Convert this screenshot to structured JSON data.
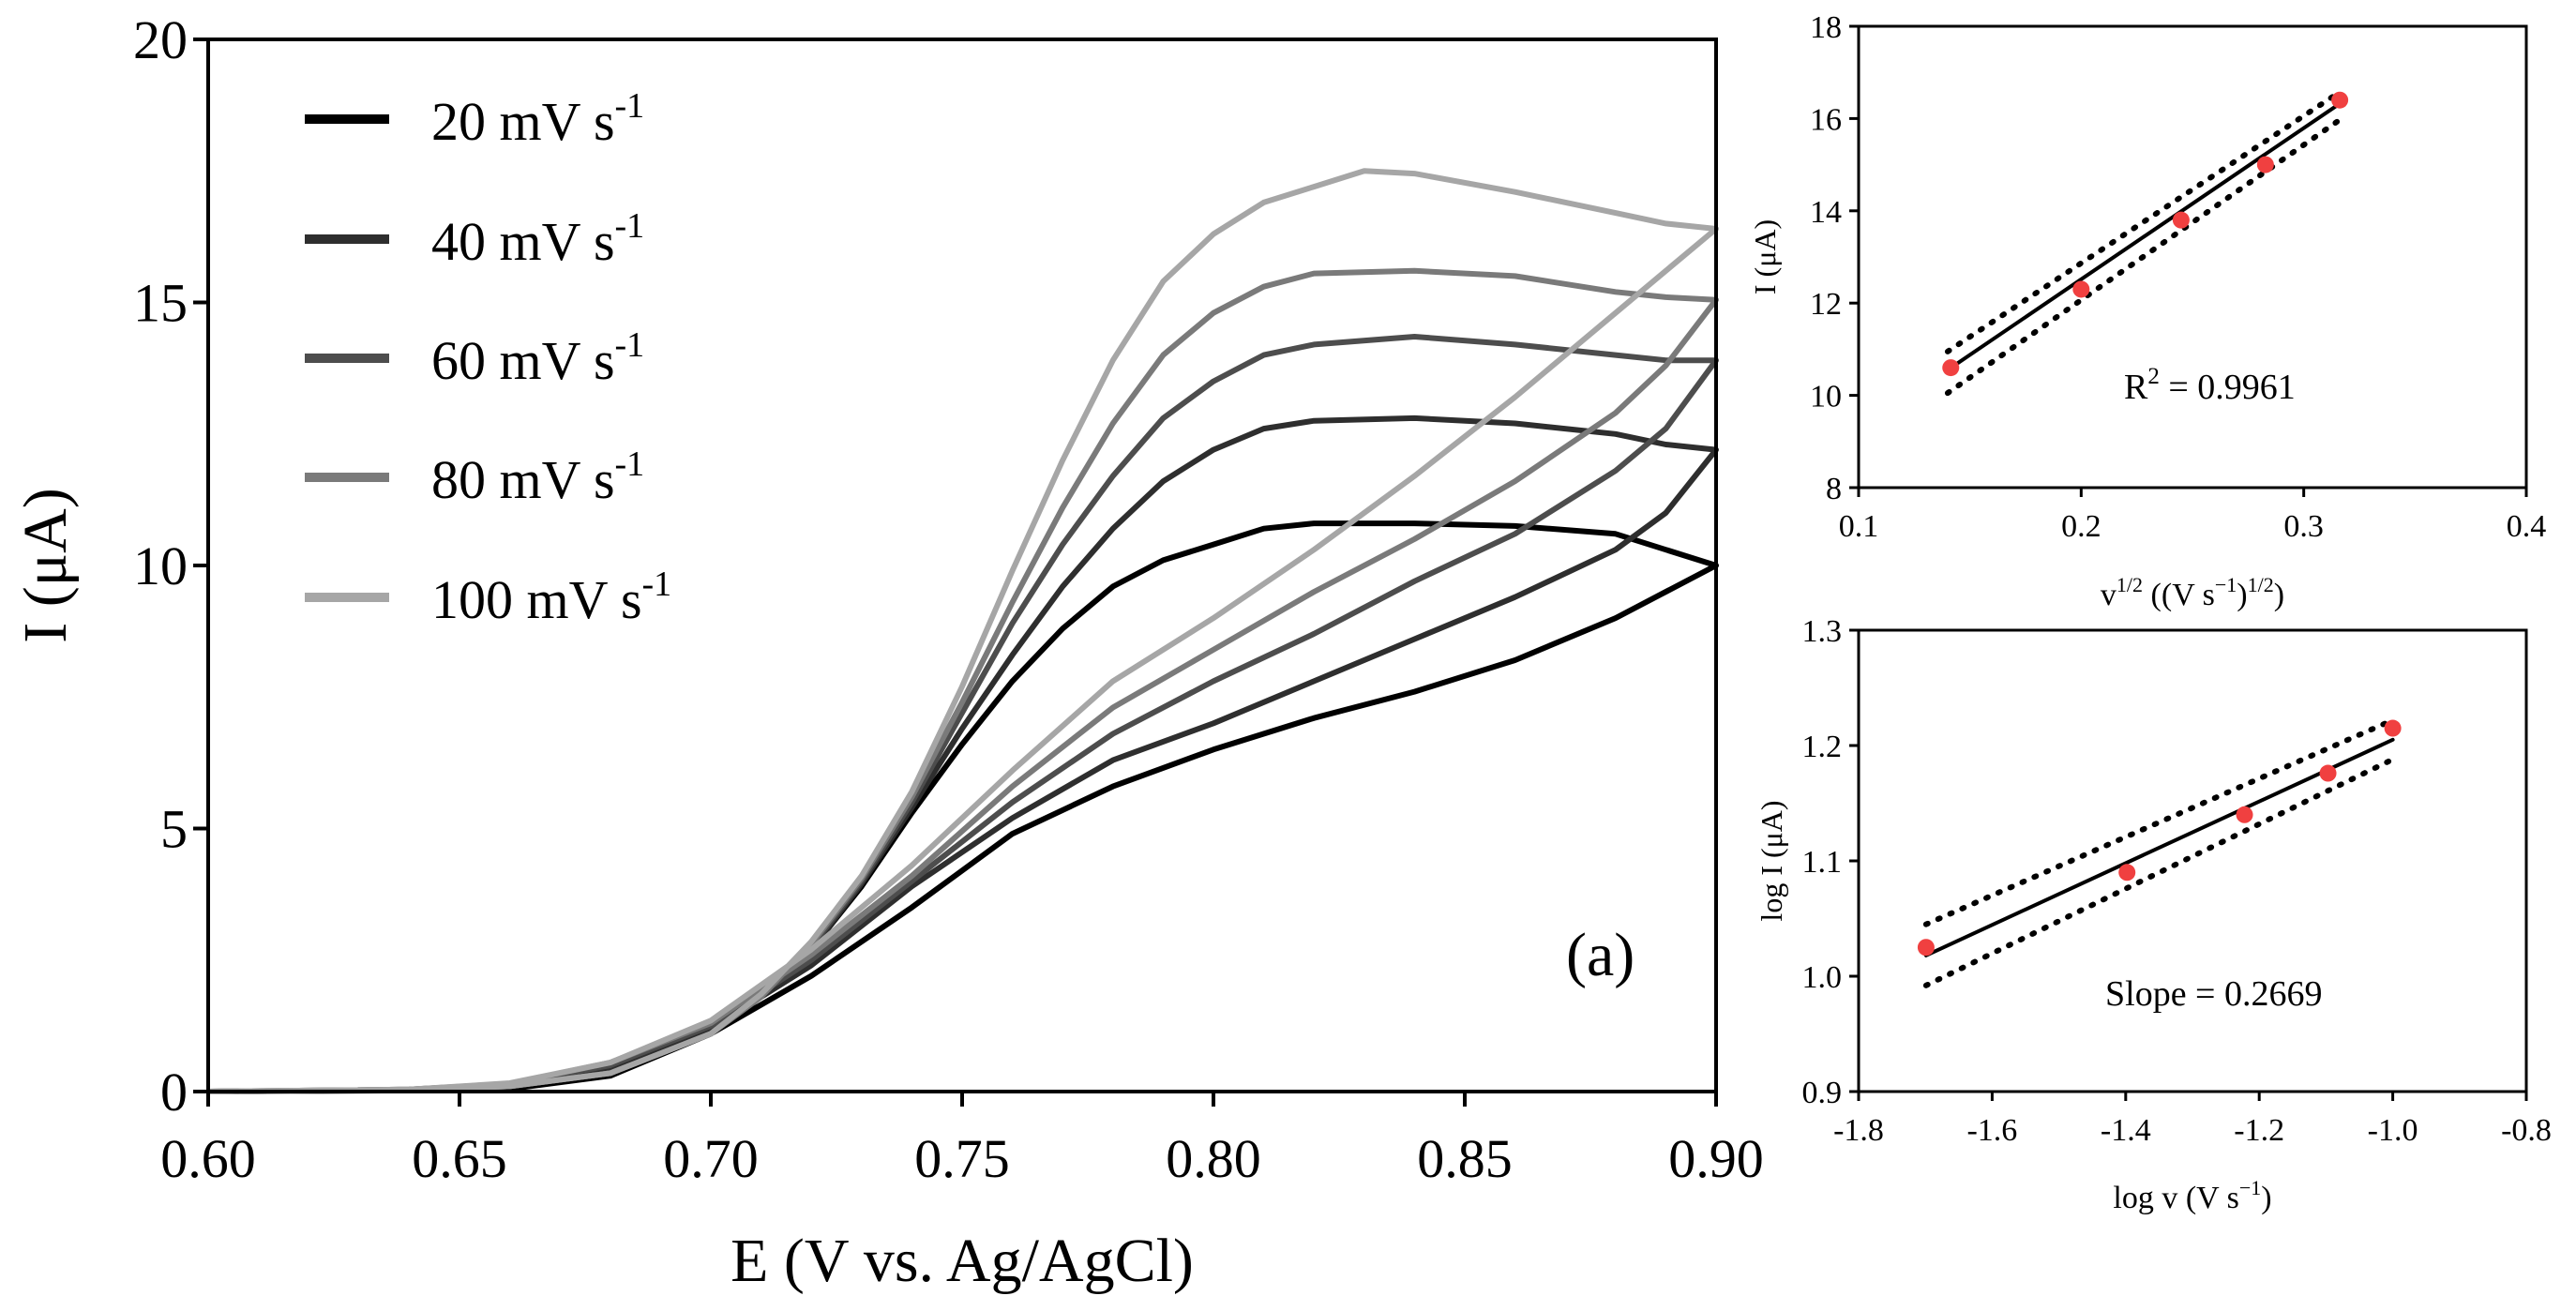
{
  "chart_data": [
    {
      "id": "main",
      "type": "line",
      "title": "",
      "panel_label": "(a)",
      "xlabel": "E (V vs. Ag/AgCl)",
      "ylabel": "I (μA)",
      "xlim": [
        0.6,
        0.9
      ],
      "ylim": [
        0,
        20
      ],
      "xticks": [
        "0.60",
        "0.65",
        "0.70",
        "0.75",
        "0.80",
        "0.85",
        "0.90"
      ],
      "yticks": [
        "0",
        "5",
        "10",
        "15",
        "20"
      ],
      "legend_position": "top-left",
      "series": [
        {
          "name": "20 mV s⁻¹",
          "legend_text": "20 mV s",
          "legend_sup": "-1",
          "color": "#000000",
          "forward": [
            [
              0.6,
              0
            ],
            [
              0.64,
              0.03
            ],
            [
              0.66,
              0.1
            ],
            [
              0.68,
              0.35
            ],
            [
              0.7,
              1.1
            ],
            [
              0.71,
              1.8
            ],
            [
              0.72,
              2.7
            ],
            [
              0.73,
              3.9
            ],
            [
              0.74,
              5.3
            ],
            [
              0.75,
              6.6
            ],
            [
              0.76,
              7.8
            ],
            [
              0.77,
              8.8
            ],
            [
              0.78,
              9.6
            ],
            [
              0.79,
              10.1
            ],
            [
              0.8,
              10.4
            ],
            [
              0.81,
              10.7
            ],
            [
              0.82,
              10.8
            ],
            [
              0.84,
              10.8
            ],
            [
              0.86,
              10.75
            ],
            [
              0.88,
              10.6
            ],
            [
              0.89,
              10.3
            ],
            [
              0.9,
              10.0
            ]
          ],
          "reverse": [
            [
              0.9,
              10.0
            ],
            [
              0.88,
              9.0
            ],
            [
              0.86,
              8.2
            ],
            [
              0.84,
              7.6
            ],
            [
              0.82,
              7.1
            ],
            [
              0.8,
              6.5
            ],
            [
              0.78,
              5.8
            ],
            [
              0.76,
              4.9
            ],
            [
              0.74,
              3.5
            ],
            [
              0.72,
              2.2
            ],
            [
              0.7,
              1.1
            ],
            [
              0.68,
              0.3
            ],
            [
              0.66,
              0.05
            ],
            [
              0.64,
              0.02
            ],
            [
              0.62,
              0.01
            ],
            [
              0.6,
              0
            ]
          ]
        },
        {
          "name": "40 mV s⁻¹",
          "legend_text": "40 mV s",
          "legend_sup": "-1",
          "color": "#2e2e2e",
          "forward": [
            [
              0.6,
              0
            ],
            [
              0.64,
              0.03
            ],
            [
              0.66,
              0.1
            ],
            [
              0.68,
              0.35
            ],
            [
              0.7,
              1.1
            ],
            [
              0.71,
              1.8
            ],
            [
              0.72,
              2.7
            ],
            [
              0.73,
              3.95
            ],
            [
              0.74,
              5.4
            ],
            [
              0.75,
              6.9
            ],
            [
              0.76,
              8.3
            ],
            [
              0.77,
              9.6
            ],
            [
              0.78,
              10.7
            ],
            [
              0.79,
              11.6
            ],
            [
              0.8,
              12.2
            ],
            [
              0.81,
              12.6
            ],
            [
              0.82,
              12.75
            ],
            [
              0.84,
              12.8
            ],
            [
              0.86,
              12.7
            ],
            [
              0.88,
              12.5
            ],
            [
              0.89,
              12.3
            ],
            [
              0.9,
              12.2
            ]
          ],
          "reverse": [
            [
              0.9,
              12.2
            ],
            [
              0.89,
              11.0
            ],
            [
              0.88,
              10.3
            ],
            [
              0.86,
              9.4
            ],
            [
              0.84,
              8.6
            ],
            [
              0.82,
              7.8
            ],
            [
              0.8,
              7.0
            ],
            [
              0.78,
              6.3
            ],
            [
              0.76,
              5.2
            ],
            [
              0.74,
              3.9
            ],
            [
              0.72,
              2.4
            ],
            [
              0.7,
              1.2
            ],
            [
              0.68,
              0.45
            ],
            [
              0.66,
              0.12
            ],
            [
              0.64,
              0.03
            ],
            [
              0.6,
              0
            ]
          ]
        },
        {
          "name": "60 mV s⁻¹",
          "legend_text": "60 mV s",
          "legend_sup": "-1",
          "color": "#4d4d4d",
          "forward": [
            [
              0.6,
              0
            ],
            [
              0.64,
              0.03
            ],
            [
              0.66,
              0.1
            ],
            [
              0.68,
              0.35
            ],
            [
              0.7,
              1.1
            ],
            [
              0.71,
              1.8
            ],
            [
              0.72,
              2.75
            ],
            [
              0.73,
              4.0
            ],
            [
              0.74,
              5.5
            ],
            [
              0.75,
              7.2
            ],
            [
              0.76,
              8.9
            ],
            [
              0.77,
              10.4
            ],
            [
              0.78,
              11.7
            ],
            [
              0.79,
              12.8
            ],
            [
              0.8,
              13.5
            ],
            [
              0.81,
              14.0
            ],
            [
              0.82,
              14.2
            ],
            [
              0.84,
              14.35
            ],
            [
              0.86,
              14.2
            ],
            [
              0.88,
              14.0
            ],
            [
              0.89,
              13.9
            ],
            [
              0.9,
              13.9
            ]
          ],
          "reverse": [
            [
              0.9,
              13.9
            ],
            [
              0.89,
              12.6
            ],
            [
              0.88,
              11.8
            ],
            [
              0.86,
              10.6
            ],
            [
              0.84,
              9.7
            ],
            [
              0.82,
              8.7
            ],
            [
              0.8,
              7.8
            ],
            [
              0.78,
              6.8
            ],
            [
              0.76,
              5.5
            ],
            [
              0.74,
              4.0
            ],
            [
              0.72,
              2.5
            ],
            [
              0.7,
              1.25
            ],
            [
              0.68,
              0.5
            ],
            [
              0.66,
              0.14
            ],
            [
              0.64,
              0.04
            ],
            [
              0.6,
              0
            ]
          ]
        },
        {
          "name": "80 mV s⁻¹",
          "legend_text": "80 mV s",
          "legend_sup": "-1",
          "color": "#7a7a7a",
          "forward": [
            [
              0.6,
              0
            ],
            [
              0.64,
              0.03
            ],
            [
              0.66,
              0.1
            ],
            [
              0.68,
              0.35
            ],
            [
              0.7,
              1.1
            ],
            [
              0.71,
              1.8
            ],
            [
              0.72,
              2.8
            ],
            [
              0.73,
              4.05
            ],
            [
              0.74,
              5.6
            ],
            [
              0.75,
              7.4
            ],
            [
              0.76,
              9.3
            ],
            [
              0.77,
              11.1
            ],
            [
              0.78,
              12.7
            ],
            [
              0.79,
              14.0
            ],
            [
              0.8,
              14.8
            ],
            [
              0.81,
              15.3
            ],
            [
              0.82,
              15.55
            ],
            [
              0.84,
              15.6
            ],
            [
              0.86,
              15.5
            ],
            [
              0.88,
              15.2
            ],
            [
              0.89,
              15.1
            ],
            [
              0.9,
              15.05
            ]
          ],
          "reverse": [
            [
              0.9,
              15.05
            ],
            [
              0.89,
              13.8
            ],
            [
              0.88,
              12.9
            ],
            [
              0.86,
              11.6
            ],
            [
              0.84,
              10.5
            ],
            [
              0.82,
              9.5
            ],
            [
              0.8,
              8.4
            ],
            [
              0.78,
              7.3
            ],
            [
              0.76,
              5.8
            ],
            [
              0.74,
              4.1
            ],
            [
              0.72,
              2.6
            ],
            [
              0.7,
              1.3
            ],
            [
              0.68,
              0.55
            ],
            [
              0.66,
              0.15
            ],
            [
              0.64,
              0.04
            ],
            [
              0.6,
              0
            ]
          ]
        },
        {
          "name": "100 mV s⁻¹",
          "legend_text": "100 mV s",
          "legend_sup": "-1",
          "color": "#a6a6a6",
          "forward": [
            [
              0.6,
              0
            ],
            [
              0.64,
              0.03
            ],
            [
              0.66,
              0.1
            ],
            [
              0.68,
              0.35
            ],
            [
              0.7,
              1.1
            ],
            [
              0.71,
              1.85
            ],
            [
              0.72,
              2.85
            ],
            [
              0.73,
              4.1
            ],
            [
              0.74,
              5.7
            ],
            [
              0.75,
              7.7
            ],
            [
              0.76,
              9.9
            ],
            [
              0.77,
              12.0
            ],
            [
              0.78,
              13.9
            ],
            [
              0.79,
              15.4
            ],
            [
              0.8,
              16.3
            ],
            [
              0.81,
              16.9
            ],
            [
              0.82,
              17.2
            ],
            [
              0.83,
              17.5
            ],
            [
              0.84,
              17.45
            ],
            [
              0.86,
              17.1
            ],
            [
              0.88,
              16.7
            ],
            [
              0.89,
              16.5
            ],
            [
              0.9,
              16.4
            ]
          ],
          "reverse": [
            [
              0.9,
              16.4
            ],
            [
              0.89,
              15.6
            ],
            [
              0.88,
              14.8
            ],
            [
              0.86,
              13.2
            ],
            [
              0.84,
              11.7
            ],
            [
              0.82,
              10.3
            ],
            [
              0.8,
              9.0
            ],
            [
              0.78,
              7.8
            ],
            [
              0.76,
              6.1
            ],
            [
              0.74,
              4.3
            ],
            [
              0.72,
              2.7
            ],
            [
              0.7,
              1.35
            ],
            [
              0.68,
              0.55
            ],
            [
              0.66,
              0.16
            ],
            [
              0.64,
              0.04
            ],
            [
              0.6,
              0
            ]
          ]
        }
      ]
    },
    {
      "id": "inset_top",
      "type": "scatter",
      "title": "",
      "xlabel_main": "v",
      "xlabel_sup1": "1/2",
      "xlabel_mid": " ((V s",
      "xlabel_sup2": "−1",
      "xlabel_mid2": ")",
      "xlabel_sup3": "1/2",
      "xlabel_end": ")",
      "ylabel": "I (μA)",
      "xlim": [
        0.1,
        0.4
      ],
      "ylim": [
        8,
        18
      ],
      "xticks": [
        "0.1",
        "0.2",
        "0.3",
        "0.4"
      ],
      "yticks": [
        "8",
        "10",
        "12",
        "14",
        "16",
        "18"
      ],
      "points": [
        [
          0.1414,
          10.6
        ],
        [
          0.2,
          12.3
        ],
        [
          0.2449,
          13.8
        ],
        [
          0.2828,
          15.0
        ],
        [
          0.3162,
          16.4
        ]
      ],
      "fit_line": [
        [
          0.14,
          10.55
        ],
        [
          0.317,
          16.35
        ]
      ],
      "ci_upper": [
        [
          0.14,
          10.95
        ],
        [
          0.317,
          16.6
        ]
      ],
      "ci_lower": [
        [
          0.14,
          10.05
        ],
        [
          0.317,
          16.0
        ]
      ],
      "point_color": "#f04040",
      "annotation_main": "R",
      "annotation_sup": "2",
      "annotation_end": " = 0.9961"
    },
    {
      "id": "inset_bottom",
      "type": "scatter",
      "title": "",
      "xlabel_main": "log v (V s",
      "xlabel_sup": "−1",
      "xlabel_end": ")",
      "ylabel": "log I (μA)",
      "xlim": [
        -1.8,
        -0.8
      ],
      "ylim": [
        0.9,
        1.3
      ],
      "xticks": [
        "-1.8",
        "-1.6",
        "-1.4",
        "-1.2",
        "-1.0",
        "-0.8"
      ],
      "yticks": [
        "0.9",
        "1.0",
        "1.1",
        "1.2",
        "1.3"
      ],
      "points": [
        [
          -1.699,
          1.025
        ],
        [
          -1.398,
          1.09
        ],
        [
          -1.222,
          1.14
        ],
        [
          -1.097,
          1.176
        ],
        [
          -1.0,
          1.215
        ]
      ],
      "fit_line": [
        [
          -1.699,
          1.018
        ],
        [
          -1.0,
          1.205
        ]
      ],
      "ci_upper": [
        [
          -1.699,
          1.045
        ],
        [
          -1.0,
          1.222
        ]
      ],
      "ci_lower": [
        [
          -1.699,
          0.992
        ],
        [
          -1.0,
          1.188
        ]
      ],
      "point_color": "#f04040",
      "annotation": "Slope = 0.2669"
    }
  ]
}
